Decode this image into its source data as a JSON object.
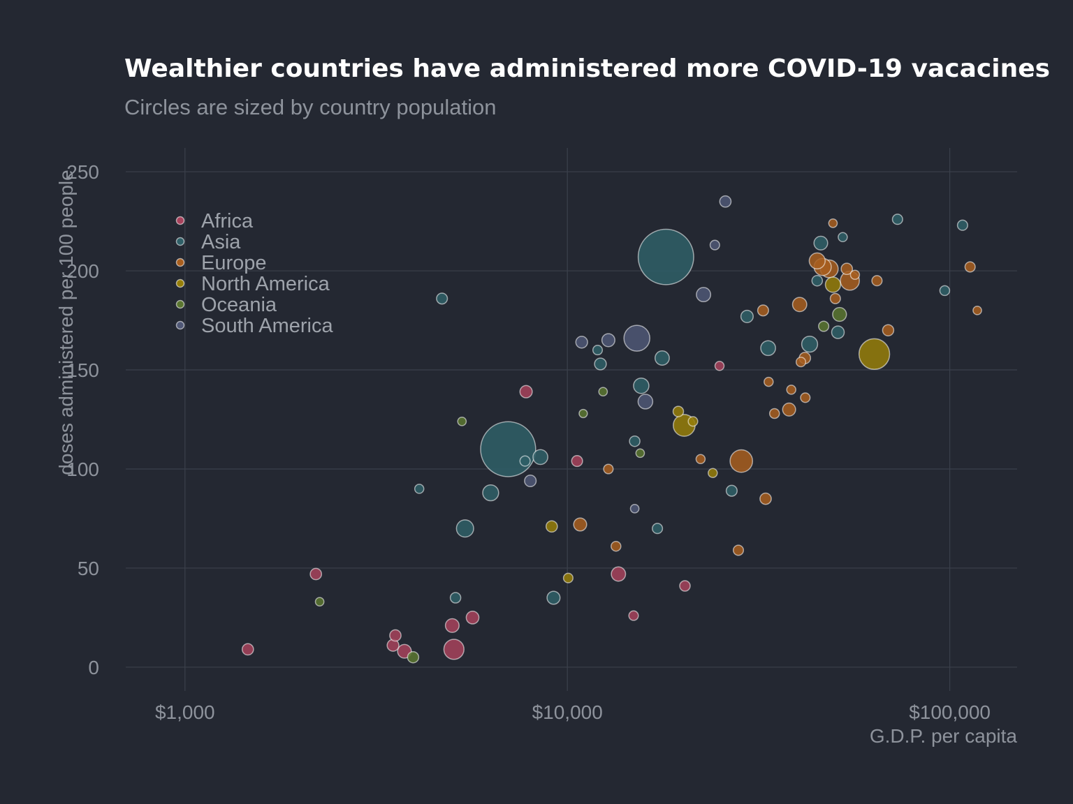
{
  "chart_data": {
    "type": "scatter",
    "title": "Wealthier countries have administered more COVID-19 vacacines",
    "subtitle": "Circles are sized by country population",
    "xlabel": "G.D.P. per capita",
    "ylabel": "doses administered per 100 people",
    "x_scale": "log10",
    "xlim": [
      700,
      150000
    ],
    "ylim": [
      -12,
      262
    ],
    "x_ticks": [
      1000,
      10000,
      100000
    ],
    "x_tick_labels": [
      "$1,000",
      "$10,000",
      "$100,000"
    ],
    "y_ticks": [
      0,
      50,
      100,
      150,
      200,
      250
    ],
    "y_tick_labels": [
      "0",
      "50",
      "100",
      "150",
      "200",
      "250"
    ],
    "grid": true,
    "legend_position": "top-left",
    "size_encoding": "population (millions, estimated)",
    "series": [
      {
        "name": "Africa",
        "color": "#a7425c",
        "points": [
          {
            "x": 1460,
            "y": 9,
            "size": 10
          },
          {
            "x": 2200,
            "y": 47,
            "size": 10
          },
          {
            "x": 3500,
            "y": 11,
            "size": 12
          },
          {
            "x": 3550,
            "y": 16,
            "size": 10
          },
          {
            "x": 3750,
            "y": 8,
            "size": 25
          },
          {
            "x": 5000,
            "y": 21,
            "size": 25
          },
          {
            "x": 5050,
            "y": 9,
            "size": 100
          },
          {
            "x": 5650,
            "y": 25,
            "size": 18
          },
          {
            "x": 7800,
            "y": 139,
            "size": 15
          },
          {
            "x": 10600,
            "y": 104,
            "size": 8
          },
          {
            "x": 13600,
            "y": 47,
            "size": 30
          },
          {
            "x": 14900,
            "y": 26,
            "size": 3
          },
          {
            "x": 20300,
            "y": 41,
            "size": 6
          },
          {
            "x": 25000,
            "y": 152,
            "size": 2
          }
        ]
      },
      {
        "name": "Asia",
        "color": "#2f5f67",
        "points": [
          {
            "x": 4100,
            "y": 90,
            "size": 2
          },
          {
            "x": 4700,
            "y": 186,
            "size": 8
          },
          {
            "x": 5100,
            "y": 35,
            "size": 6
          },
          {
            "x": 5400,
            "y": 70,
            "size": 60
          },
          {
            "x": 6300,
            "y": 88,
            "size": 45
          },
          {
            "x": 7000,
            "y": 110,
            "size": 1380
          },
          {
            "x": 7750,
            "y": 104,
            "size": 5
          },
          {
            "x": 8500,
            "y": 106,
            "size": 35
          },
          {
            "x": 9200,
            "y": 35,
            "size": 20
          },
          {
            "x": 12000,
            "y": 160,
            "size": 3
          },
          {
            "x": 12200,
            "y": 153,
            "size": 12
          },
          {
            "x": 15000,
            "y": 114,
            "size": 6
          },
          {
            "x": 15600,
            "y": 142,
            "size": 40
          },
          {
            "x": 17200,
            "y": 70,
            "size": 5
          },
          {
            "x": 17700,
            "y": 156,
            "size": 30
          },
          {
            "x": 18100,
            "y": 207,
            "size": 1410
          },
          {
            "x": 26900,
            "y": 89,
            "size": 8
          },
          {
            "x": 29500,
            "y": 177,
            "size": 15
          },
          {
            "x": 33500,
            "y": 161,
            "size": 35
          },
          {
            "x": 43000,
            "y": 163,
            "size": 45
          },
          {
            "x": 45000,
            "y": 195,
            "size": 6
          },
          {
            "x": 46000,
            "y": 214,
            "size": 25
          },
          {
            "x": 51000,
            "y": 169,
            "size": 17
          },
          {
            "x": 52500,
            "y": 217,
            "size": 2
          },
          {
            "x": 73000,
            "y": 226,
            "size": 5
          },
          {
            "x": 97000,
            "y": 190,
            "size": 4
          },
          {
            "x": 108000,
            "y": 223,
            "size": 5
          }
        ]
      },
      {
        "name": "Europe",
        "color": "#a85e1e",
        "points": [
          {
            "x": 10800,
            "y": 72,
            "size": 20
          },
          {
            "x": 12800,
            "y": 100,
            "size": 3
          },
          {
            "x": 13400,
            "y": 61,
            "size": 4
          },
          {
            "x": 22300,
            "y": 105,
            "size": 2
          },
          {
            "x": 28000,
            "y": 59,
            "size": 5
          },
          {
            "x": 28500,
            "y": 104,
            "size": 140
          },
          {
            "x": 32500,
            "y": 180,
            "size": 8
          },
          {
            "x": 33000,
            "y": 85,
            "size": 10
          },
          {
            "x": 33600,
            "y": 144,
            "size": 2
          },
          {
            "x": 34800,
            "y": 128,
            "size": 4
          },
          {
            "x": 38000,
            "y": 130,
            "size": 20
          },
          {
            "x": 38500,
            "y": 140,
            "size": 2
          },
          {
            "x": 40500,
            "y": 183,
            "size": 30
          },
          {
            "x": 40800,
            "y": 154,
            "size": 3
          },
          {
            "x": 41900,
            "y": 136,
            "size": 3
          },
          {
            "x": 41800,
            "y": 156,
            "size": 10
          },
          {
            "x": 45000,
            "y": 205,
            "size": 45
          },
          {
            "x": 46500,
            "y": 202,
            "size": 60
          },
          {
            "x": 48400,
            "y": 201,
            "size": 67
          },
          {
            "x": 49500,
            "y": 224,
            "size": 1
          },
          {
            "x": 50200,
            "y": 186,
            "size": 5
          },
          {
            "x": 53800,
            "y": 201,
            "size": 10
          },
          {
            "x": 54800,
            "y": 195,
            "size": 83
          },
          {
            "x": 56500,
            "y": 198,
            "size": 2
          },
          {
            "x": 64500,
            "y": 195,
            "size": 5
          },
          {
            "x": 69000,
            "y": 170,
            "size": 9
          },
          {
            "x": 113000,
            "y": 202,
            "size": 5
          },
          {
            "x": 118000,
            "y": 180,
            "size": 1
          }
        ]
      },
      {
        "name": "North America",
        "color": "#967e09",
        "points": [
          {
            "x": 9100,
            "y": 71,
            "size": 10
          },
          {
            "x": 10050,
            "y": 45,
            "size": 3
          },
          {
            "x": 19500,
            "y": 129,
            "size": 6
          },
          {
            "x": 20200,
            "y": 122,
            "size": 128
          },
          {
            "x": 21300,
            "y": 124,
            "size": 3
          },
          {
            "x": 24000,
            "y": 98,
            "size": 2
          },
          {
            "x": 49500,
            "y": 193,
            "size": 38
          },
          {
            "x": 63500,
            "y": 158,
            "size": 330
          }
        ]
      },
      {
        "name": "Oceania",
        "color": "#5a7530",
        "points": [
          {
            "x": 2250,
            "y": 33,
            "size": 1
          },
          {
            "x": 3950,
            "y": 5,
            "size": 9
          },
          {
            "x": 5300,
            "y": 124,
            "size": 1
          },
          {
            "x": 11000,
            "y": 128,
            "size": 0.5
          },
          {
            "x": 12400,
            "y": 139,
            "size": 1
          },
          {
            "x": 15500,
            "y": 108,
            "size": 1
          },
          {
            "x": 46800,
            "y": 172,
            "size": 5
          },
          {
            "x": 51500,
            "y": 178,
            "size": 26
          }
        ]
      },
      {
        "name": "South America",
        "color": "#4f5775",
        "points": [
          {
            "x": 8000,
            "y": 94,
            "size": 11
          },
          {
            "x": 10900,
            "y": 164,
            "size": 12
          },
          {
            "x": 12800,
            "y": 165,
            "size": 20
          },
          {
            "x": 15000,
            "y": 80,
            "size": 1
          },
          {
            "x": 15200,
            "y": 166,
            "size": 210
          },
          {
            "x": 16000,
            "y": 134,
            "size": 33
          },
          {
            "x": 22700,
            "y": 188,
            "size": 30
          },
          {
            "x": 24300,
            "y": 213,
            "size": 3
          },
          {
            "x": 25900,
            "y": 235,
            "size": 10
          }
        ]
      }
    ]
  }
}
